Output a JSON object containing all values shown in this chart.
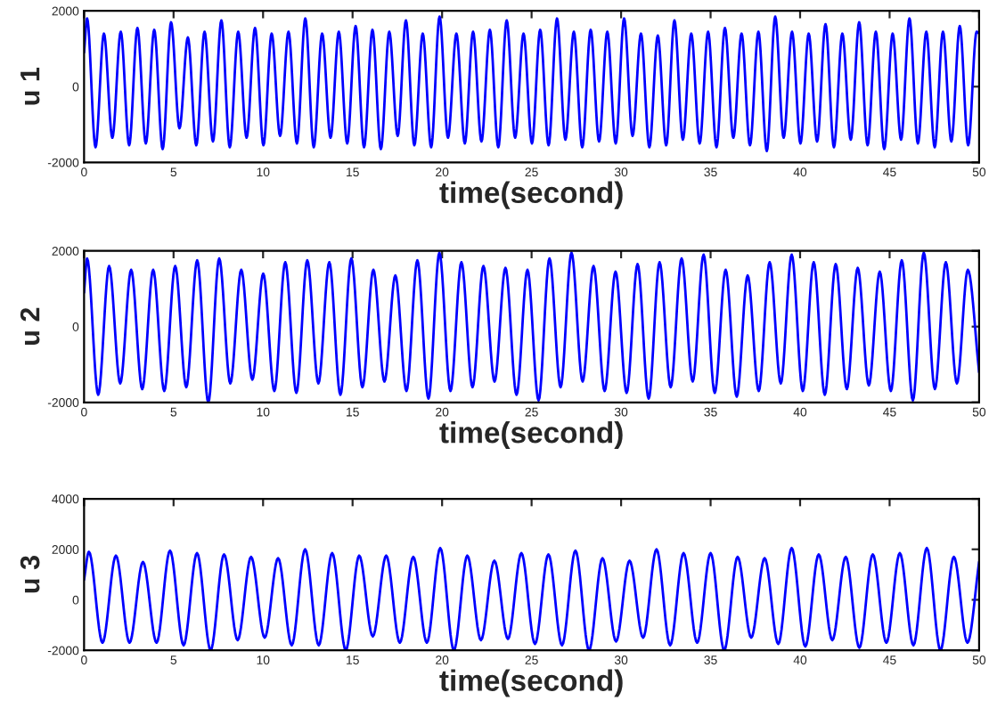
{
  "chart_data": [
    {
      "type": "line",
      "xlabel": "time(second)",
      "ylabel": "u 1",
      "xlim": [
        0,
        50
      ],
      "xticks": [
        0,
        5,
        10,
        15,
        20,
        25,
        30,
        35,
        40,
        45,
        50
      ],
      "ylim": [
        -2000,
        2000
      ],
      "yticks": [
        -2000,
        0,
        2000
      ],
      "grid": false,
      "legend": false,
      "marker": "none",
      "line_style": "solid",
      "series": [
        {
          "color": "#0000ff",
          "x": [
            0,
            0.17,
            0.64,
            1.11,
            1.58,
            2.05,
            2.52,
            2.98,
            3.45,
            3.92,
            4.39,
            4.86,
            5.33,
            5.8,
            6.27,
            6.73,
            7.2,
            7.67,
            8.14,
            8.61,
            9.08,
            9.55,
            10.02,
            10.48,
            10.95,
            11.42,
            11.89,
            12.36,
            12.83,
            13.3,
            13.77,
            14.23,
            14.7,
            15.17,
            15.64,
            16.11,
            16.58,
            17.05,
            17.52,
            17.98,
            18.45,
            18.92,
            19.39,
            19.86,
            20.33,
            20.8,
            21.27,
            21.73,
            22.2,
            22.67,
            23.14,
            23.61,
            24.08,
            24.55,
            25.02,
            25.48,
            25.95,
            26.42,
            26.89,
            27.36,
            27.83,
            28.3,
            28.77,
            29.23,
            29.7,
            30.17,
            30.64,
            31.11,
            31.58,
            32.05,
            32.52,
            32.98,
            33.45,
            33.92,
            34.39,
            34.86,
            35.33,
            35.8,
            36.27,
            36.73,
            37.2,
            37.67,
            38.14,
            38.61,
            39.08,
            39.55,
            40.02,
            40.48,
            40.95,
            41.42,
            41.89,
            42.36,
            42.83,
            43.3,
            43.77,
            44.23,
            44.7,
            45.17,
            45.64,
            46.11,
            46.58,
            47.05,
            47.52,
            47.98,
            48.45,
            48.92,
            49.39,
            49.86,
            50
          ],
          "values": [
            900,
            1800,
            -1600,
            1400,
            -1350,
            1450,
            -1550,
            1550,
            -1500,
            1500,
            -1650,
            1700,
            -1100,
            1300,
            -1550,
            1450,
            -1450,
            1750,
            -1600,
            1450,
            -1350,
            1550,
            -1550,
            1400,
            -1300,
            1450,
            -1500,
            1800,
            -1600,
            1400,
            -1350,
            1450,
            -1500,
            1600,
            -1600,
            1500,
            -1650,
            1450,
            -1300,
            1750,
            -1550,
            1400,
            -1600,
            1850,
            -1350,
            1400,
            -1500,
            1450,
            -1450,
            1500,
            -1600,
            1750,
            -1350,
            1400,
            -1500,
            1500,
            -1550,
            1800,
            -1400,
            1450,
            -1600,
            1500,
            -1450,
            1450,
            -1500,
            1800,
            -1300,
            1400,
            -1600,
            1350,
            -1550,
            1750,
            -1400,
            1400,
            -1500,
            1450,
            -1600,
            1550,
            -1350,
            1400,
            -1550,
            1450,
            -1700,
            1850,
            -1350,
            1450,
            -1500,
            1400,
            -1450,
            1650,
            -1600,
            1400,
            -1400,
            1700,
            -1550,
            1450,
            -1650,
            1400,
            -1400,
            1800,
            -1500,
            1450,
            -1600,
            1450,
            -1450,
            1600,
            -1550,
            1450,
            1400
          ]
        }
      ]
    },
    {
      "type": "line",
      "xlabel": "time(second)",
      "ylabel": "u 2",
      "xlim": [
        0,
        50
      ],
      "xticks": [
        0,
        5,
        10,
        15,
        20,
        25,
        30,
        35,
        40,
        45,
        50
      ],
      "ylim": [
        -2000,
        2000
      ],
      "yticks": [
        -2000,
        0,
        2000
      ],
      "grid": false,
      "legend": false,
      "marker": "none",
      "line_style": "solid",
      "series": [
        {
          "color": "#0000ff",
          "x": [
            0,
            0.17,
            0.79,
            1.4,
            2.02,
            2.63,
            3.25,
            3.86,
            4.48,
            5.09,
            5.71,
            6.32,
            6.94,
            7.55,
            8.17,
            8.78,
            9.4,
            10.01,
            10.63,
            11.24,
            11.86,
            12.47,
            13.09,
            13.7,
            14.32,
            14.93,
            15.55,
            16.16,
            16.78,
            17.39,
            18.01,
            18.62,
            19.24,
            19.85,
            20.47,
            21.08,
            21.7,
            22.31,
            22.93,
            23.54,
            24.16,
            24.77,
            25.39,
            26.0,
            26.62,
            27.23,
            27.85,
            28.46,
            29.08,
            29.69,
            30.31,
            30.92,
            31.54,
            32.15,
            32.77,
            33.38,
            34.0,
            34.61,
            35.23,
            35.84,
            36.46,
            37.07,
            37.69,
            38.3,
            38.92,
            39.53,
            40.15,
            40.76,
            41.38,
            41.99,
            42.61,
            43.22,
            43.84,
            44.45,
            45.07,
            45.68,
            46.3,
            46.91,
            47.53,
            48.14,
            48.76,
            49.37,
            50
          ],
          "values": [
            900,
            1800,
            -1800,
            1600,
            -1500,
            1500,
            -1650,
            1500,
            -1700,
            1600,
            -1600,
            1750,
            -2000,
            1800,
            -1500,
            1500,
            -1400,
            1400,
            -1700,
            1700,
            -1750,
            1750,
            -1500,
            1700,
            -1800,
            1800,
            -1600,
            1500,
            -1450,
            1350,
            -1700,
            1750,
            -1900,
            1950,
            -1700,
            1700,
            -1600,
            1600,
            -1450,
            1550,
            -1800,
            1500,
            -1950,
            1800,
            -1600,
            1950,
            -1450,
            1600,
            -1700,
            1450,
            -1750,
            1650,
            -1900,
            1700,
            -1600,
            1800,
            -1450,
            1900,
            -1750,
            1500,
            -1850,
            1350,
            -1700,
            1700,
            -1500,
            1900,
            -1700,
            1700,
            -1800,
            1650,
            -1650,
            1550,
            -1550,
            1450,
            -1700,
            1750,
            -1950,
            1950,
            -1650,
            1700,
            -1500,
            1500,
            -1200
          ]
        }
      ]
    },
    {
      "type": "line",
      "xlabel": "time(second)",
      "ylabel": "u 3",
      "xlim": [
        0,
        50
      ],
      "xticks": [
        0,
        5,
        10,
        15,
        20,
        25,
        30,
        35,
        40,
        45,
        50
      ],
      "ylim": [
        -2000,
        4000
      ],
      "yticks": [
        -2000,
        0,
        2000,
        4000
      ],
      "grid": false,
      "legend": false,
      "marker": "none",
      "line_style": "solid",
      "series": [
        {
          "color": "#0000ff",
          "x": [
            0,
            0.27,
            1.03,
            1.78,
            2.54,
            3.29,
            4.05,
            4.8,
            5.56,
            6.31,
            7.07,
            7.82,
            8.58,
            9.33,
            10.09,
            10.84,
            11.6,
            12.35,
            13.11,
            13.86,
            14.62,
            15.37,
            16.13,
            16.88,
            17.64,
            18.39,
            19.15,
            19.9,
            20.66,
            21.41,
            22.17,
            22.92,
            23.68,
            24.43,
            25.19,
            25.94,
            26.7,
            27.45,
            28.21,
            28.96,
            29.72,
            30.47,
            31.23,
            31.98,
            32.74,
            33.49,
            34.25,
            35.0,
            35.76,
            36.51,
            37.27,
            38.02,
            38.78,
            39.53,
            40.29,
            41.04,
            41.8,
            42.55,
            43.31,
            44.06,
            44.82,
            45.57,
            46.33,
            47.08,
            47.84,
            48.59,
            49.35,
            50
          ],
          "values": [
            800,
            1900,
            -1700,
            1750,
            -1700,
            1500,
            -1700,
            1950,
            -1800,
            1850,
            -2000,
            1800,
            -1600,
            1700,
            -1500,
            1650,
            -1800,
            2000,
            -1800,
            1850,
            -2000,
            1750,
            -1450,
            1750,
            -1700,
            1700,
            -1700,
            2050,
            -2000,
            1750,
            -1600,
            1550,
            -1550,
            1850,
            -1750,
            1800,
            -1800,
            1950,
            -2000,
            1650,
            -1650,
            1550,
            -1500,
            2000,
            -1800,
            1850,
            -1700,
            1850,
            -2000,
            1700,
            -1500,
            1650,
            -1750,
            2050,
            -1850,
            1800,
            -1600,
            1700,
            -1900,
            1800,
            -1700,
            1850,
            -1800,
            2050,
            -2000,
            1700,
            -1700,
            1500
          ]
        }
      ]
    }
  ]
}
